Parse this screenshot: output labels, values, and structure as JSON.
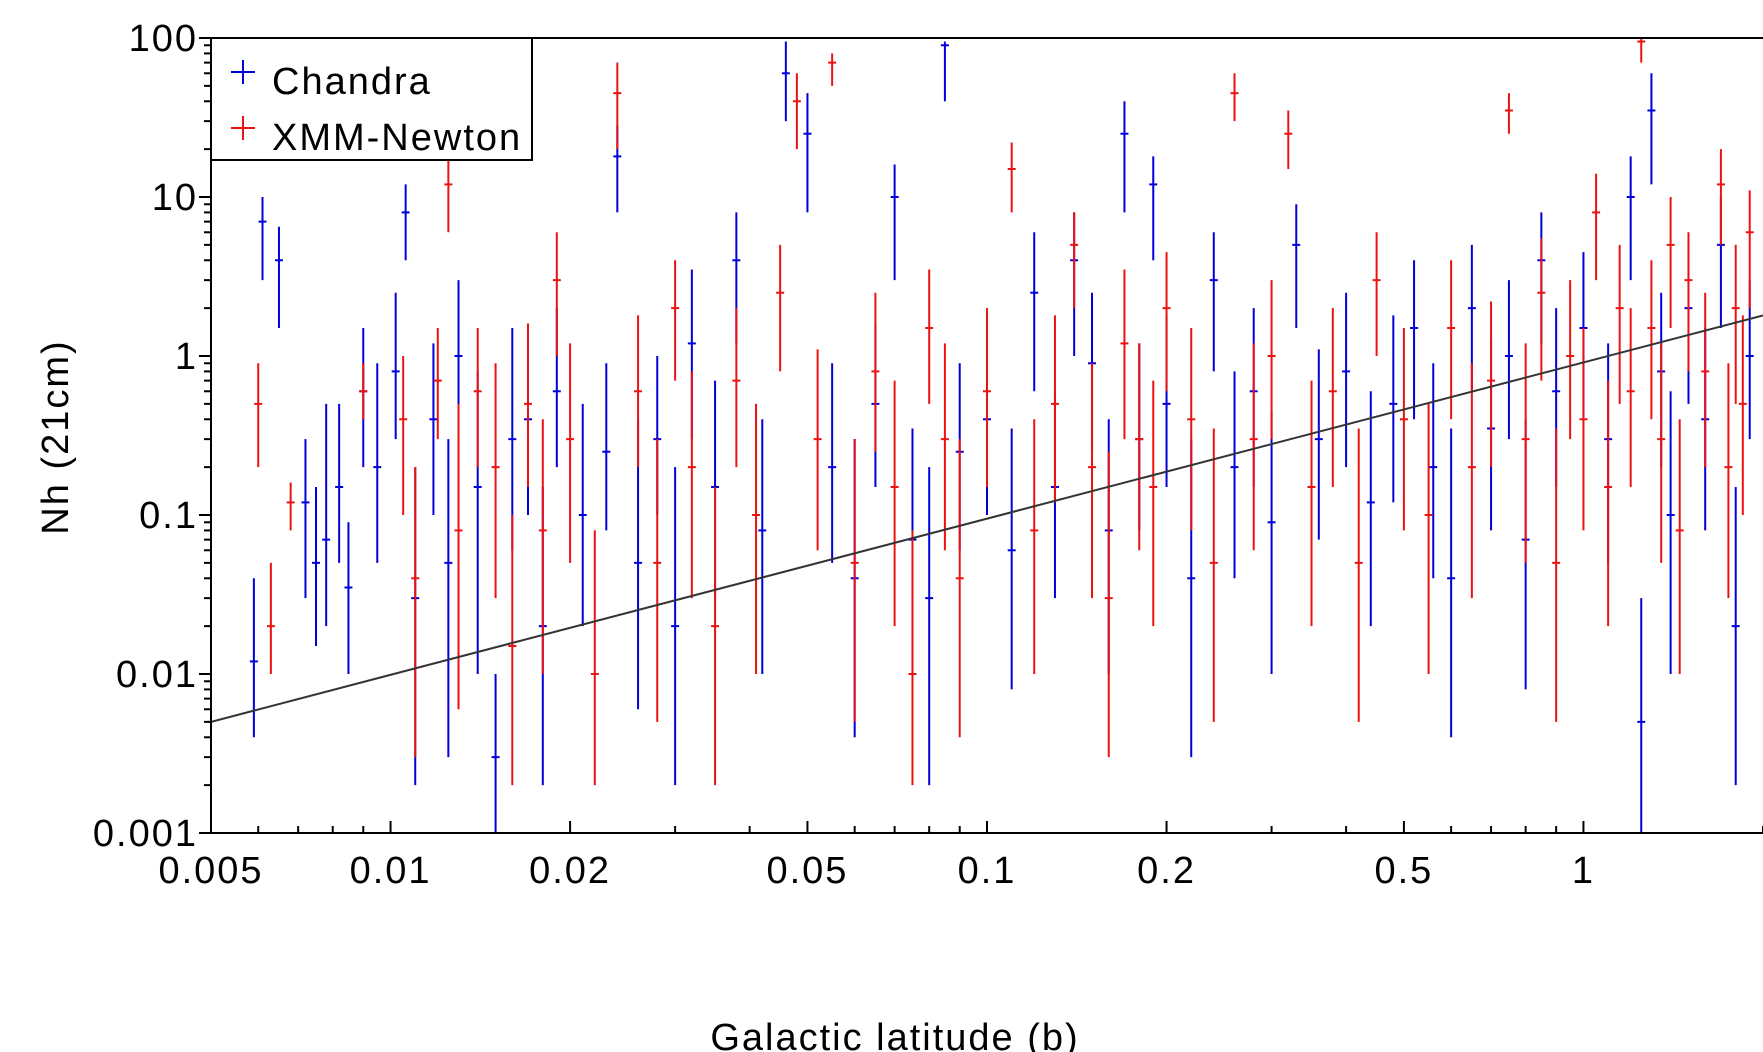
{
  "chart_data": {
    "type": "scatter",
    "title": "",
    "xlabel": "Galactic latitude (b)",
    "ylabel": "Nh (21cm)",
    "xscale": "log",
    "yscale": "log",
    "xlim": [
      0.005,
      2
    ],
    "ylim": [
      0.001,
      100
    ],
    "x_ticks": [
      {
        "value": 0.005,
        "label": "0.005"
      },
      {
        "value": 0.01,
        "label": "0.01"
      },
      {
        "value": 0.02,
        "label": "0.02"
      },
      {
        "value": 0.05,
        "label": "0.05"
      },
      {
        "value": 0.1,
        "label": "0.1"
      },
      {
        "value": 0.2,
        "label": "0.2"
      },
      {
        "value": 0.5,
        "label": "0.5"
      },
      {
        "value": 1,
        "label": "1"
      }
    ],
    "y_ticks": [
      {
        "value": 0.001,
        "label": "0.001"
      },
      {
        "value": 0.01,
        "label": "0.01"
      },
      {
        "value": 0.1,
        "label": "0.1"
      },
      {
        "value": 1,
        "label": "1"
      },
      {
        "value": 10,
        "label": "10"
      },
      {
        "value": 100,
        "label": "100"
      }
    ],
    "grid": false,
    "legend_position": "top-left",
    "series": [
      {
        "name": "Chandra",
        "color": "#0000dd",
        "marker": "errorbar-cross",
        "points": [
          [
            0.0059,
            0.012,
            0.004,
            0.04
          ],
          [
            0.0061,
            7.0,
            3.0,
            10.0
          ],
          [
            0.0065,
            4.0,
            1.5,
            6.5
          ],
          [
            0.0072,
            0.12,
            0.03,
            0.3
          ],
          [
            0.0075,
            0.05,
            0.015,
            0.15
          ],
          [
            0.0078,
            0.07,
            0.02,
            0.5
          ],
          [
            0.0082,
            0.15,
            0.05,
            0.5
          ],
          [
            0.0085,
            0.035,
            0.01,
            0.09
          ],
          [
            0.009,
            0.6,
            0.2,
            1.5
          ],
          [
            0.0095,
            0.2,
            0.05,
            0.9
          ],
          [
            0.0102,
            0.8,
            0.3,
            2.5
          ],
          [
            0.0106,
            8.0,
            4.0,
            12.0
          ],
          [
            0.011,
            0.03,
            0.002,
            0.2
          ],
          [
            0.0118,
            0.4,
            0.1,
            1.2
          ],
          [
            0.0125,
            0.05,
            0.003,
            0.3
          ],
          [
            0.013,
            1.0,
            0.2,
            3.0
          ],
          [
            0.014,
            0.15,
            0.01,
            0.8
          ],
          [
            0.015,
            0.003,
            0.001,
            0.01
          ],
          [
            0.016,
            0.3,
            0.06,
            1.5
          ],
          [
            0.017,
            0.4,
            0.1,
            1.2
          ],
          [
            0.018,
            0.02,
            0.002,
            0.15
          ],
          [
            0.019,
            0.6,
            0.2,
            2.0
          ],
          [
            0.021,
            0.1,
            0.02,
            0.5
          ],
          [
            0.023,
            0.25,
            0.08,
            0.9
          ],
          [
            0.024,
            18.0,
            8.0,
            28.0
          ],
          [
            0.026,
            0.05,
            0.006,
            0.4
          ],
          [
            0.028,
            0.3,
            0.1,
            1.0
          ],
          [
            0.03,
            0.02,
            0.002,
            0.2
          ],
          [
            0.032,
            1.2,
            0.3,
            3.5
          ],
          [
            0.035,
            0.15,
            0.03,
            0.7
          ],
          [
            0.038,
            4.0,
            1.2,
            8.0
          ],
          [
            0.042,
            0.08,
            0.01,
            0.4
          ],
          [
            0.046,
            60.0,
            30.0,
            95.0
          ],
          [
            0.05,
            25.0,
            8.0,
            45.0
          ],
          [
            0.055,
            0.2,
            0.05,
            0.9
          ],
          [
            0.06,
            0.04,
            0.004,
            0.3
          ],
          [
            0.065,
            0.5,
            0.15,
            1.6
          ],
          [
            0.07,
            10.0,
            3.0,
            16.0
          ],
          [
            0.075,
            0.07,
            0.01,
            0.35
          ],
          [
            0.08,
            0.03,
            0.002,
            0.2
          ],
          [
            0.085,
            90.0,
            40.0,
            95.0
          ],
          [
            0.09,
            0.25,
            0.06,
            0.9
          ],
          [
            0.1,
            0.4,
            0.1,
            1.5
          ],
          [
            0.11,
            0.06,
            0.008,
            0.35
          ],
          [
            0.12,
            2.5,
            0.6,
            6.0
          ],
          [
            0.13,
            0.15,
            0.03,
            0.6
          ],
          [
            0.14,
            4.0,
            1.0,
            8.0
          ],
          [
            0.15,
            0.9,
            0.25,
            2.5
          ],
          [
            0.16,
            0.08,
            0.01,
            0.4
          ],
          [
            0.17,
            25.0,
            8.0,
            40.0
          ],
          [
            0.18,
            0.3,
            0.08,
            1.2
          ],
          [
            0.19,
            12.0,
            4.0,
            18.0
          ],
          [
            0.2,
            0.5,
            0.15,
            1.8
          ],
          [
            0.22,
            0.04,
            0.003,
            0.3
          ],
          [
            0.24,
            3.0,
            0.8,
            6.0
          ],
          [
            0.26,
            0.2,
            0.04,
            0.8
          ],
          [
            0.28,
            0.6,
            0.15,
            2.0
          ],
          [
            0.3,
            0.09,
            0.01,
            0.45
          ],
          [
            0.33,
            5.0,
            1.5,
            9.0
          ],
          [
            0.36,
            0.3,
            0.07,
            1.1
          ],
          [
            0.4,
            0.8,
            0.2,
            2.5
          ],
          [
            0.44,
            0.12,
            0.02,
            0.6
          ],
          [
            0.48,
            0.5,
            0.12,
            1.8
          ],
          [
            0.52,
            1.5,
            0.4,
            4.0
          ],
          [
            0.56,
            0.2,
            0.04,
            0.9
          ],
          [
            0.6,
            0.04,
            0.004,
            0.35
          ],
          [
            0.65,
            2.0,
            0.6,
            5.0
          ],
          [
            0.7,
            0.35,
            0.08,
            1.3
          ],
          [
            0.75,
            1.0,
            0.3,
            3.0
          ],
          [
            0.8,
            0.07,
            0.008,
            0.4
          ],
          [
            0.85,
            4.0,
            1.2,
            8.0
          ],
          [
            0.9,
            0.6,
            0.15,
            2.0
          ],
          [
            1.0,
            1.5,
            0.4,
            4.5
          ],
          [
            1.1,
            0.3,
            0.05,
            1.2
          ],
          [
            1.2,
            10.0,
            3.0,
            18.0
          ],
          [
            1.25,
            0.005,
            0.001,
            0.03
          ],
          [
            1.3,
            35.0,
            12.0,
            60.0
          ],
          [
            1.35,
            0.8,
            0.2,
            2.5
          ],
          [
            1.4,
            0.1,
            0.01,
            0.6
          ],
          [
            1.5,
            2.0,
            0.5,
            5.0
          ],
          [
            1.6,
            0.4,
            0.08,
            1.5
          ],
          [
            1.7,
            5.0,
            1.5,
            10.0
          ],
          [
            1.8,
            0.02,
            0.002,
            0.15
          ],
          [
            1.9,
            1.0,
            0.3,
            3.0
          ]
        ]
      },
      {
        "name": "XMM-Newton",
        "color": "#ee1111",
        "marker": "errorbar-cross",
        "points": [
          [
            0.006,
            0.5,
            0.2,
            0.9
          ],
          [
            0.0063,
            0.02,
            0.01,
            0.05
          ],
          [
            0.0068,
            0.12,
            0.08,
            0.16
          ],
          [
            0.009,
            0.6,
            0.4,
            0.9
          ],
          [
            0.0105,
            0.4,
            0.1,
            1.0
          ],
          [
            0.011,
            0.04,
            0.003,
            0.2
          ],
          [
            0.012,
            0.7,
            0.3,
            1.5
          ],
          [
            0.0125,
            12.0,
            6.0,
            18.0
          ],
          [
            0.013,
            0.08,
            0.006,
            0.5
          ],
          [
            0.014,
            0.6,
            0.2,
            1.5
          ],
          [
            0.015,
            0.2,
            0.03,
            0.9
          ],
          [
            0.016,
            0.015,
            0.002,
            0.1
          ],
          [
            0.017,
            0.5,
            0.15,
            1.6
          ],
          [
            0.018,
            0.08,
            0.01,
            0.4
          ],
          [
            0.019,
            3.0,
            1.0,
            6.0
          ],
          [
            0.02,
            0.3,
            0.05,
            1.2
          ],
          [
            0.022,
            0.01,
            0.002,
            0.08
          ],
          [
            0.024,
            45.0,
            20.0,
            70.0
          ],
          [
            0.026,
            0.6,
            0.2,
            1.8
          ],
          [
            0.028,
            0.05,
            0.005,
            0.3
          ],
          [
            0.03,
            2.0,
            0.7,
            4.0
          ],
          [
            0.032,
            0.2,
            0.03,
            0.8
          ],
          [
            0.035,
            0.02,
            0.002,
            0.15
          ],
          [
            0.038,
            0.7,
            0.2,
            2.0
          ],
          [
            0.041,
            0.1,
            0.01,
            0.5
          ],
          [
            0.045,
            2.5,
            0.8,
            5.0
          ],
          [
            0.048,
            40.0,
            20.0,
            60.0
          ],
          [
            0.052,
            0.3,
            0.06,
            1.1
          ],
          [
            0.055,
            70.0,
            50.0,
            80.0
          ],
          [
            0.06,
            0.05,
            0.005,
            0.3
          ],
          [
            0.065,
            0.8,
            0.25,
            2.5
          ],
          [
            0.07,
            0.15,
            0.02,
            0.7
          ],
          [
            0.075,
            0.01,
            0.002,
            0.08
          ],
          [
            0.08,
            1.5,
            0.5,
            3.5
          ],
          [
            0.085,
            0.3,
            0.06,
            1.2
          ],
          [
            0.09,
            0.04,
            0.004,
            0.3
          ],
          [
            0.1,
            0.6,
            0.15,
            2.0
          ],
          [
            0.11,
            15.0,
            8.0,
            22.0
          ],
          [
            0.12,
            0.08,
            0.01,
            0.4
          ],
          [
            0.13,
            0.5,
            0.12,
            1.8
          ],
          [
            0.14,
            5.0,
            2.0,
            8.0
          ],
          [
            0.15,
            0.2,
            0.03,
            0.9
          ],
          [
            0.16,
            0.03,
            0.003,
            0.25
          ],
          [
            0.17,
            1.2,
            0.3,
            3.5
          ],
          [
            0.18,
            0.3,
            0.06,
            1.2
          ],
          [
            0.19,
            0.15,
            0.02,
            0.7
          ],
          [
            0.2,
            2.0,
            0.6,
            4.5
          ],
          [
            0.22,
            0.4,
            0.08,
            1.5
          ],
          [
            0.24,
            0.05,
            0.005,
            0.35
          ],
          [
            0.26,
            45.0,
            30.0,
            60.0
          ],
          [
            0.28,
            0.3,
            0.06,
            1.2
          ],
          [
            0.3,
            1.0,
            0.3,
            3.0
          ],
          [
            0.32,
            25.0,
            15.0,
            35.0
          ],
          [
            0.35,
            0.15,
            0.02,
            0.7
          ],
          [
            0.38,
            0.6,
            0.15,
            2.0
          ],
          [
            0.42,
            0.05,
            0.005,
            0.35
          ],
          [
            0.45,
            3.0,
            1.0,
            6.0
          ],
          [
            0.5,
            0.4,
            0.08,
            1.5
          ],
          [
            0.55,
            0.1,
            0.01,
            0.5
          ],
          [
            0.6,
            1.5,
            0.4,
            4.0
          ],
          [
            0.65,
            0.2,
            0.03,
            0.9
          ],
          [
            0.7,
            0.7,
            0.2,
            2.2
          ],
          [
            0.75,
            35.0,
            25.0,
            45.0
          ],
          [
            0.8,
            0.3,
            0.05,
            1.2
          ],
          [
            0.85,
            2.5,
            0.7,
            5.5
          ],
          [
            0.9,
            0.05,
            0.005,
            0.35
          ],
          [
            0.95,
            1.0,
            0.3,
            3.0
          ],
          [
            1.0,
            0.4,
            0.08,
            1.5
          ],
          [
            1.05,
            8.0,
            3.0,
            14.0
          ],
          [
            1.1,
            0.15,
            0.02,
            0.7
          ],
          [
            1.15,
            2.0,
            0.5,
            5.0
          ],
          [
            1.2,
            0.6,
            0.15,
            2.0
          ],
          [
            1.25,
            95.0,
            70.0,
            100.0
          ],
          [
            1.3,
            1.5,
            0.4,
            4.0
          ],
          [
            1.35,
            0.3,
            0.05,
            1.2
          ],
          [
            1.4,
            5.0,
            1.5,
            10.0
          ],
          [
            1.45,
            0.08,
            0.01,
            0.4
          ],
          [
            1.5,
            3.0,
            0.8,
            6.0
          ],
          [
            1.6,
            0.8,
            0.2,
            2.5
          ],
          [
            1.7,
            12.0,
            5.0,
            20.0
          ],
          [
            1.75,
            0.2,
            0.03,
            0.9
          ],
          [
            1.8,
            2.0,
            0.5,
            5.0
          ],
          [
            1.85,
            0.5,
            0.1,
            1.8
          ],
          [
            1.9,
            6.0,
            2.0,
            11.0
          ]
        ]
      }
    ],
    "fit_line": {
      "color": "#333333",
      "points": [
        [
          0.005,
          0.005
        ],
        [
          2.0,
          1.8
        ]
      ]
    }
  }
}
